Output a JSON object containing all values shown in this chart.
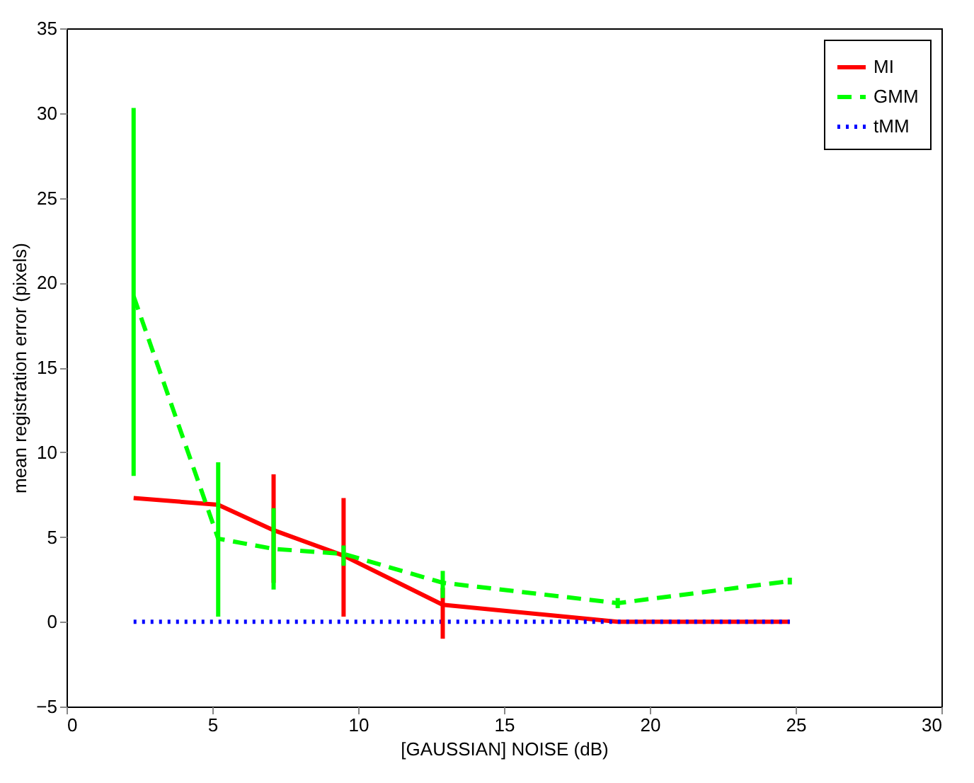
{
  "chart_data": {
    "type": "line",
    "xlabel": "[GAUSSIAN] NOISE (dB)",
    "ylabel": "mean registration error (pixels)",
    "xlim": [
      0,
      30
    ],
    "xticks": [
      0,
      5,
      10,
      15,
      20,
      25,
      30
    ],
    "ylim": [
      -5,
      35
    ],
    "yticks": [
      -5,
      0,
      5,
      10,
      15,
      20,
      25,
      30,
      35
    ],
    "grid": false,
    "legend": "top right",
    "marker": "none",
    "series": [
      {
        "name": "MI",
        "color": "#ff0000",
        "line_style": "solid",
        "x": [
          2.3,
          5.2,
          7.1,
          9.5,
          12.9,
          18.9,
          24.8
        ],
        "values": [
          7.3,
          6.9,
          5.4,
          3.9,
          1.0,
          0,
          0
        ],
        "errors": [
          [
            7.3,
            7.3
          ],
          null,
          [
            2.3,
            8.7
          ],
          [
            0.3,
            7.3
          ],
          [
            -1.0,
            2.0
          ],
          [
            0,
            0
          ],
          [
            0,
            0
          ]
        ]
      },
      {
        "name": "GMM",
        "color": "#00ff00",
        "line_style": "dashed",
        "x": [
          2.3,
          5.2,
          7.1,
          9.5,
          12.9,
          18.9,
          24.8
        ],
        "values": [
          19.2,
          4.9,
          4.3,
          4.0,
          2.3,
          1.1,
          2.4
        ],
        "errors": [
          [
            8.6,
            30.3
          ],
          [
            0.3,
            9.4
          ],
          [
            1.9,
            6.7
          ],
          [
            3.3,
            4.5
          ],
          [
            1.4,
            3.0
          ],
          [
            0.8,
            1.4
          ],
          [
            2.2,
            2.6
          ]
        ]
      },
      {
        "name": "tMM",
        "color": "#0000ff",
        "line_style": "dotted",
        "x": [
          2.3,
          5.2,
          7.1,
          9.5,
          12.9,
          18.9,
          24.8
        ],
        "values": [
          0,
          0,
          0,
          0,
          0,
          0,
          0
        ],
        "errors": [
          [
            0,
            0
          ],
          [
            0,
            0
          ],
          [
            0,
            0
          ],
          [
            0,
            0
          ],
          [
            0,
            0
          ],
          [
            0,
            0
          ],
          [
            0,
            0
          ]
        ]
      }
    ]
  }
}
